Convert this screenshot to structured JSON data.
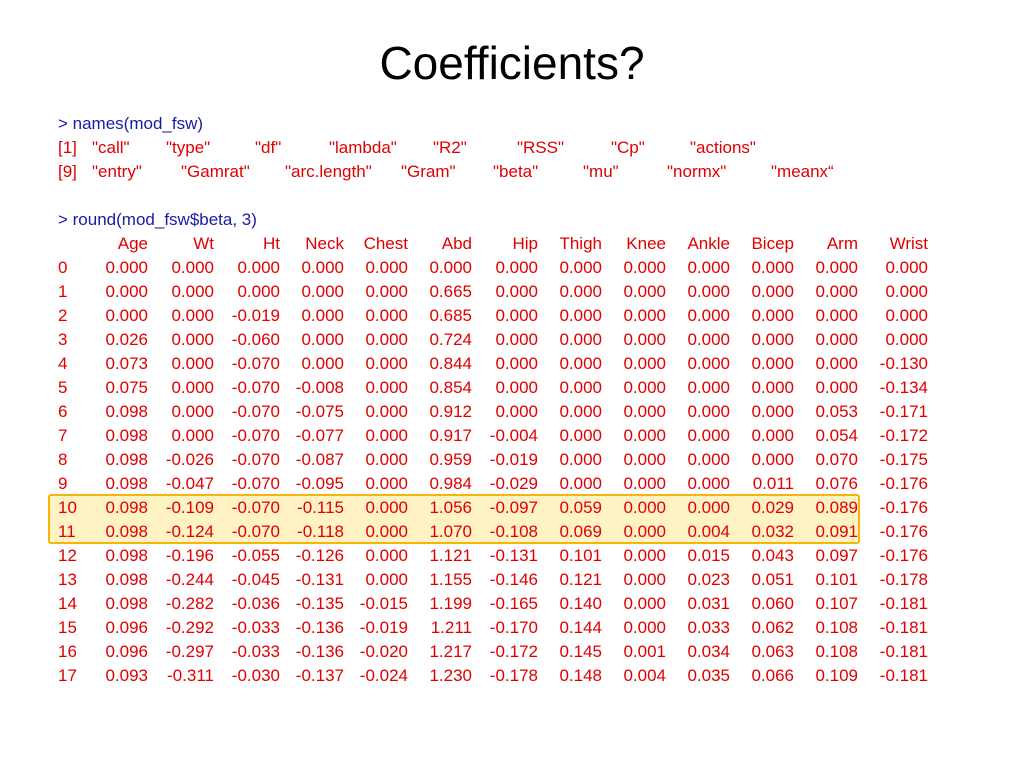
{
  "title": "Coefficients?",
  "names_cmd": "> names(mod_fsw)",
  "names_line1": {
    "prefix": "[1]",
    "items": [
      "\"call\"",
      "\"type\"",
      "\"df\"",
      "\"lambda\"",
      "\"R2\"",
      "\"RSS\"",
      "\"Cp\"",
      "\"actions\""
    ]
  },
  "names_line2": {
    "prefix": "[9]",
    "items": [
      "\"entry\"",
      "\"Gamrat\"",
      "\"arc.length\"",
      "\"Gram\"",
      "\"beta\"",
      "\"mu\"",
      "\"normx\"",
      "\"meanx“"
    ]
  },
  "round_cmd": "> round(mod_fsw$beta, 3)",
  "table": {
    "columns": [
      "Age",
      "Wt",
      "Ht",
      "Neck",
      "Chest",
      "Abd",
      "Hip",
      "Thigh",
      "Knee",
      "Ankle",
      "Bicep",
      "Arm",
      "Wrist"
    ],
    "rows": [
      [
        "0",
        "0.000",
        "0.000",
        "0.000",
        "0.000",
        "0.000",
        "0.000",
        "0.000",
        "0.000",
        "0.000",
        "0.000",
        "0.000",
        "0.000",
        "0.000"
      ],
      [
        "1",
        "0.000",
        "0.000",
        "0.000",
        "0.000",
        "0.000",
        "0.665",
        "0.000",
        "0.000",
        "0.000",
        "0.000",
        "0.000",
        "0.000",
        "0.000"
      ],
      [
        "2",
        "0.000",
        "0.000",
        "-0.019",
        "0.000",
        "0.000",
        "0.685",
        "0.000",
        "0.000",
        "0.000",
        "0.000",
        "0.000",
        "0.000",
        "0.000"
      ],
      [
        "3",
        "0.026",
        "0.000",
        "-0.060",
        "0.000",
        "0.000",
        "0.724",
        "0.000",
        "0.000",
        "0.000",
        "0.000",
        "0.000",
        "0.000",
        "0.000"
      ],
      [
        "4",
        "0.073",
        "0.000",
        "-0.070",
        "0.000",
        "0.000",
        "0.844",
        "0.000",
        "0.000",
        "0.000",
        "0.000",
        "0.000",
        "0.000",
        "-0.130"
      ],
      [
        "5",
        "0.075",
        "0.000",
        "-0.070",
        "-0.008",
        "0.000",
        "0.854",
        "0.000",
        "0.000",
        "0.000",
        "0.000",
        "0.000",
        "0.000",
        "-0.134"
      ],
      [
        "6",
        "0.098",
        "0.000",
        "-0.070",
        "-0.075",
        "0.000",
        "0.912",
        "0.000",
        "0.000",
        "0.000",
        "0.000",
        "0.000",
        "0.053",
        "-0.171"
      ],
      [
        "7",
        "0.098",
        "0.000",
        "-0.070",
        "-0.077",
        "0.000",
        "0.917",
        "-0.004",
        "0.000",
        "0.000",
        "0.000",
        "0.000",
        "0.054",
        "-0.172"
      ],
      [
        "8",
        "0.098",
        "-0.026",
        "-0.070",
        "-0.087",
        "0.000",
        "0.959",
        "-0.019",
        "0.000",
        "0.000",
        "0.000",
        "0.000",
        "0.070",
        "-0.175"
      ],
      [
        "9",
        "0.098",
        "-0.047",
        "-0.070",
        "-0.095",
        "0.000",
        "0.984",
        "-0.029",
        "0.000",
        "0.000",
        "0.000",
        "0.011",
        "0.076",
        "-0.176"
      ],
      [
        "10",
        "0.098",
        "-0.109",
        "-0.070",
        "-0.115",
        "0.000",
        "1.056",
        "-0.097",
        "0.059",
        "0.000",
        "0.000",
        "0.029",
        "0.089",
        "-0.176"
      ],
      [
        "11",
        "0.098",
        "-0.124",
        "-0.070",
        "-0.118",
        "0.000",
        "1.070",
        "-0.108",
        "0.069",
        "0.000",
        "0.004",
        "0.032",
        "0.091",
        "-0.176"
      ],
      [
        "12",
        "0.098",
        "-0.196",
        "-0.055",
        "-0.126",
        "0.000",
        "1.121",
        "-0.131",
        "0.101",
        "0.000",
        "0.015",
        "0.043",
        "0.097",
        "-0.176"
      ],
      [
        "13",
        "0.098",
        "-0.244",
        "-0.045",
        "-0.131",
        "0.000",
        "1.155",
        "-0.146",
        "0.121",
        "0.000",
        "0.023",
        "0.051",
        "0.101",
        "-0.178"
      ],
      [
        "14",
        "0.098",
        "-0.282",
        "-0.036",
        "-0.135",
        "-0.015",
        "1.199",
        "-0.165",
        "0.140",
        "0.000",
        "0.031",
        "0.060",
        "0.107",
        "-0.181"
      ],
      [
        "15",
        "0.096",
        "-0.292",
        "-0.033",
        "-0.136",
        "-0.019",
        "1.211",
        "-0.170",
        "0.144",
        "0.000",
        "0.033",
        "0.062",
        "0.108",
        "-0.181"
      ],
      [
        "16",
        "0.096",
        "-0.297",
        "-0.033",
        "-0.136",
        "-0.020",
        "1.217",
        "-0.172",
        "0.145",
        "0.001",
        "0.034",
        "0.063",
        "0.108",
        "-0.181"
      ],
      [
        "17",
        "0.093",
        "-0.311",
        "-0.030",
        "-0.137",
        "-0.024",
        "1.230",
        "-0.178",
        "0.148",
        "0.004",
        "0.035",
        "0.066",
        "0.109",
        "-0.181"
      ]
    ],
    "highlighted_rows": [
      "10",
      "11"
    ]
  },
  "colors": {
    "command_text": "#1a1aa6",
    "output_text": "#e00000",
    "highlight_border": "#f5b50a"
  }
}
